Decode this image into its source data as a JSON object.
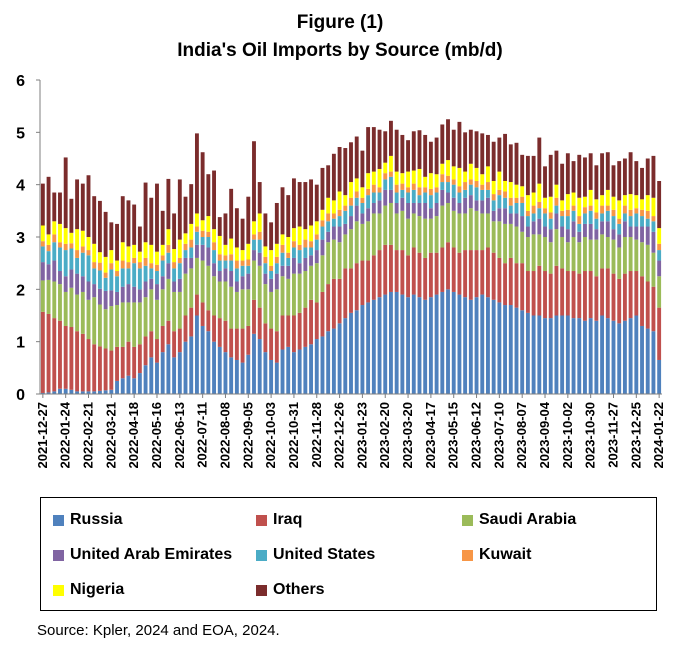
{
  "chart_data": {
    "type": "bar",
    "stacked": true,
    "title": "Figure (1)",
    "subtitle": "India's Oil Imports by Source (mb/d)",
    "xlabel": "",
    "ylabel": "",
    "ylim": [
      0,
      6
    ],
    "yticks": [
      0,
      1,
      2,
      3,
      4,
      5,
      6
    ],
    "grid": false,
    "legend_position": "bottom",
    "tick_labels": [
      "2021-12-27",
      "2022-01-24",
      "2022-02-21",
      "2022-03-21",
      "2022-04-18",
      "2022-05-16",
      "2022-06-13",
      "2022-07-11",
      "2022-08-08",
      "2022-09-05",
      "2022-10-03",
      "2022-10-31",
      "2022-11-28",
      "2022-12-26",
      "2023-01-23",
      "2023-02-20",
      "2023-03-20",
      "2023-04-17",
      "2023-05-15",
      "2023-06-12",
      "2023-07-10",
      "2023-08-07",
      "2023-09-04",
      "2023-10-02",
      "2023-10-30",
      "2023-11-27",
      "2023-12-25",
      "2024-01-22"
    ],
    "week_count": 109,
    "series": [
      {
        "name": "Russia",
        "color": "#4f81bd",
        "values": [
          0.02,
          0.03,
          0.05,
          0.1,
          0.1,
          0.08,
          0.05,
          0.05,
          0.05,
          0.05,
          0.06,
          0.07,
          0.08,
          0.25,
          0.3,
          0.35,
          0.3,
          0.4,
          0.55,
          0.7,
          0.6,
          0.8,
          0.95,
          0.7,
          0.8,
          1.0,
          1.1,
          1.5,
          1.3,
          1.2,
          1.0,
          0.9,
          0.8,
          0.7,
          0.65,
          0.6,
          0.75,
          1.15,
          1.05,
          0.8,
          0.65,
          0.6,
          0.85,
          0.9,
          0.8,
          0.85,
          0.9,
          0.95,
          1.05,
          1.1,
          1.2,
          1.25,
          1.35,
          1.45,
          1.55,
          1.6,
          1.7,
          1.75,
          1.8,
          1.85,
          1.9,
          1.95,
          1.95,
          1.9,
          1.85,
          1.9,
          1.85,
          1.8,
          1.85,
          1.9,
          1.95,
          2.0,
          1.95,
          1.9,
          1.85,
          1.8,
          1.85,
          1.9,
          1.85,
          1.8,
          1.75,
          1.7,
          1.7,
          1.65,
          1.6,
          1.55,
          1.5,
          1.5,
          1.45,
          1.45,
          1.5,
          1.5,
          1.5,
          1.45,
          1.45,
          1.4,
          1.45,
          1.4,
          1.5,
          1.45,
          1.4,
          1.35,
          1.4,
          1.45,
          1.5,
          1.3,
          1.25,
          1.2,
          0.65
        ]
      },
      {
        "name": "Iraq",
        "color": "#c0504d",
        "values": [
          1.55,
          1.5,
          1.4,
          1.3,
          1.2,
          1.2,
          1.15,
          1.1,
          1.0,
          0.9,
          0.85,
          0.8,
          0.75,
          0.65,
          0.6,
          0.65,
          0.6,
          0.55,
          0.55,
          0.5,
          0.45,
          0.5,
          0.45,
          0.5,
          0.45,
          0.5,
          0.55,
          0.4,
          0.45,
          0.4,
          0.5,
          0.55,
          0.6,
          0.55,
          0.6,
          0.65,
          0.55,
          0.65,
          0.6,
          0.55,
          0.6,
          0.6,
          0.65,
          0.6,
          0.7,
          0.7,
          0.75,
          0.85,
          0.7,
          0.85,
          0.9,
          0.95,
          0.85,
          0.95,
          0.85,
          0.9,
          0.85,
          0.8,
          0.85,
          0.9,
          0.95,
          0.9,
          0.8,
          0.85,
          0.8,
          0.9,
          0.85,
          0.8,
          0.85,
          0.8,
          0.85,
          0.9,
          0.85,
          0.8,
          0.9,
          0.95,
          0.9,
          0.85,
          0.95,
          0.9,
          0.85,
          0.8,
          0.9,
          0.85,
          0.9,
          0.8,
          0.85,
          0.95,
          0.9,
          0.85,
          0.95,
          0.9,
          0.85,
          0.9,
          0.85,
          0.95,
          0.9,
          0.85,
          0.9,
          0.95,
          0.9,
          0.85,
          0.9,
          0.9,
          0.85,
          0.95,
          0.9,
          0.85,
          1.0
        ]
      },
      {
        "name": "Saudi Arabia",
        "color": "#9bbb59",
        "values": [
          0.6,
          0.65,
          0.7,
          0.7,
          0.65,
          0.75,
          0.7,
          0.8,
          0.75,
          0.9,
          0.8,
          0.75,
          0.85,
          0.8,
          0.85,
          0.75,
          0.85,
          0.8,
          0.75,
          0.8,
          0.75,
          0.7,
          0.8,
          0.75,
          0.7,
          0.8,
          0.75,
          0.7,
          0.8,
          0.85,
          0.75,
          0.7,
          0.75,
          0.8,
          0.7,
          0.75,
          0.7,
          0.75,
          0.8,
          0.75,
          0.7,
          0.8,
          0.75,
          0.7,
          0.8,
          0.75,
          0.7,
          0.65,
          0.75,
          0.7,
          0.8,
          0.75,
          0.7,
          0.65,
          0.75,
          0.8,
          0.7,
          0.75,
          0.8,
          0.7,
          0.75,
          0.8,
          0.7,
          0.75,
          0.7,
          0.65,
          0.7,
          0.75,
          0.65,
          0.7,
          0.8,
          0.75,
          0.7,
          0.75,
          0.7,
          0.8,
          0.75,
          0.7,
          0.65,
          0.6,
          0.7,
          0.75,
          0.65,
          0.7,
          0.6,
          0.65,
          0.7,
          0.6,
          0.65,
          0.6,
          0.7,
          0.6,
          0.55,
          0.65,
          0.6,
          0.65,
          0.6,
          0.7,
          0.65,
          0.6,
          0.65,
          0.6,
          0.7,
          0.65,
          0.6,
          0.65,
          0.7,
          0.65,
          0.6
        ]
      },
      {
        "name": "United Arab Emirates",
        "color": "#8064a2",
        "values": [
          0.35,
          0.3,
          0.4,
          0.25,
          0.3,
          0.35,
          0.4,
          0.3,
          0.35,
          0.25,
          0.3,
          0.35,
          0.3,
          0.25,
          0.3,
          0.35,
          0.3,
          0.25,
          0.3,
          0.2,
          0.3,
          0.25,
          0.3,
          0.2,
          0.25,
          0.3,
          0.2,
          0.25,
          0.3,
          0.35,
          0.25,
          0.2,
          0.25,
          0.3,
          0.2,
          0.25,
          0.3,
          0.2,
          0.25,
          0.2,
          0.25,
          0.3,
          0.2,
          0.25,
          0.3,
          0.2,
          0.25,
          0.2,
          0.25,
          0.3,
          0.2,
          0.25,
          0.3,
          0.2,
          0.25,
          0.3,
          0.2,
          0.25,
          0.2,
          0.25,
          0.3,
          0.25,
          0.2,
          0.25,
          0.3,
          0.2,
          0.25,
          0.3,
          0.2,
          0.25,
          0.3,
          0.2,
          0.25,
          0.2,
          0.3,
          0.25,
          0.2,
          0.25,
          0.3,
          0.2,
          0.25,
          0.3,
          0.2,
          0.25,
          0.3,
          0.2,
          0.25,
          0.3,
          0.2,
          0.25,
          0.3,
          0.2,
          0.25,
          0.3,
          0.2,
          0.25,
          0.3,
          0.2,
          0.25,
          0.3,
          0.2,
          0.25,
          0.3,
          0.2,
          0.25,
          0.3,
          0.35,
          0.4,
          0.3
        ]
      },
      {
        "name": "United States",
        "color": "#4bacc6",
        "values": [
          0.3,
          0.25,
          0.35,
          0.45,
          0.5,
          0.4,
          0.3,
          0.45,
          0.5,
          0.3,
          0.35,
          0.25,
          0.4,
          0.3,
          0.35,
          0.3,
          0.45,
          0.4,
          0.3,
          0.2,
          0.25,
          0.3,
          0.2,
          0.25,
          0.3,
          0.15,
          0.2,
          0.25,
          0.15,
          0.2,
          0.25,
          0.2,
          0.15,
          0.2,
          0.25,
          0.2,
          0.15,
          0.2,
          0.25,
          0.2,
          0.15,
          0.2,
          0.25,
          0.15,
          0.2,
          0.25,
          0.2,
          0.15,
          0.2,
          0.25,
          0.2,
          0.15,
          0.2,
          0.25,
          0.2,
          0.15,
          0.2,
          0.25,
          0.2,
          0.15,
          0.2,
          0.25,
          0.2,
          0.15,
          0.2,
          0.25,
          0.15,
          0.2,
          0.25,
          0.2,
          0.15,
          0.2,
          0.25,
          0.2,
          0.15,
          0.2,
          0.25,
          0.2,
          0.15,
          0.2,
          0.25,
          0.2,
          0.15,
          0.2,
          0.25,
          0.2,
          0.15,
          0.2,
          0.25,
          0.2,
          0.15,
          0.2,
          0.25,
          0.2,
          0.15,
          0.2,
          0.25,
          0.2,
          0.15,
          0.2,
          0.25,
          0.2,
          0.15,
          0.2,
          0.25,
          0.2,
          0.15,
          0.2,
          0.2
        ]
      },
      {
        "name": "Kuwait",
        "color": "#f79646",
        "values": [
          0.1,
          0.12,
          0.15,
          0.1,
          0.12,
          0.1,
          0.15,
          0.12,
          0.1,
          0.12,
          0.15,
          0.1,
          0.12,
          0.1,
          0.15,
          0.12,
          0.1,
          0.12,
          0.15,
          0.1,
          0.12,
          0.1,
          0.15,
          0.12,
          0.1,
          0.12,
          0.15,
          0.1,
          0.12,
          0.1,
          0.15,
          0.12,
          0.1,
          0.12,
          0.15,
          0.1,
          0.12,
          0.1,
          0.15,
          0.12,
          0.1,
          0.12,
          0.15,
          0.1,
          0.12,
          0.1,
          0.15,
          0.12,
          0.1,
          0.12,
          0.15,
          0.1,
          0.12,
          0.1,
          0.15,
          0.12,
          0.1,
          0.12,
          0.15,
          0.1,
          0.12,
          0.1,
          0.15,
          0.12,
          0.1,
          0.12,
          0.15,
          0.1,
          0.12,
          0.1,
          0.15,
          0.12,
          0.1,
          0.12,
          0.15,
          0.1,
          0.12,
          0.1,
          0.15,
          0.12,
          0.1,
          0.12,
          0.15,
          0.1,
          0.12,
          0.1,
          0.15,
          0.12,
          0.1,
          0.12,
          0.15,
          0.1,
          0.12,
          0.1,
          0.15,
          0.12,
          0.1,
          0.12,
          0.15,
          0.1,
          0.12,
          0.1,
          0.15,
          0.12,
          0.1,
          0.12,
          0.15,
          0.1,
          0.12
        ]
      },
      {
        "name": "Nigeria",
        "color": "#ffff00",
        "values": [
          0.3,
          0.2,
          0.25,
          0.35,
          0.3,
          0.2,
          0.4,
          0.3,
          0.25,
          0.35,
          0.2,
          0.3,
          0.25,
          0.2,
          0.35,
          0.3,
          0.25,
          0.2,
          0.3,
          0.35,
          0.25,
          0.2,
          0.3,
          0.25,
          0.35,
          0.2,
          0.3,
          0.25,
          0.2,
          0.3,
          0.25,
          0.35,
          0.2,
          0.3,
          0.25,
          0.2,
          0.3,
          0.25,
          0.35,
          0.2,
          0.3,
          0.25,
          0.2,
          0.3,
          0.25,
          0.35,
          0.2,
          0.3,
          0.25,
          0.2,
          0.3,
          0.25,
          0.35,
          0.2,
          0.3,
          0.25,
          0.2,
          0.3,
          0.25,
          0.35,
          0.2,
          0.3,
          0.25,
          0.2,
          0.3,
          0.25,
          0.35,
          0.2,
          0.3,
          0.25,
          0.2,
          0.3,
          0.25,
          0.35,
          0.2,
          0.3,
          0.25,
          0.2,
          0.3,
          0.25,
          0.35,
          0.2,
          0.3,
          0.25,
          0.2,
          0.3,
          0.25,
          0.35,
          0.2,
          0.3,
          0.25,
          0.2,
          0.3,
          0.25,
          0.35,
          0.2,
          0.3,
          0.25,
          0.2,
          0.3,
          0.25,
          0.35,
          0.2,
          0.3,
          0.25,
          0.2,
          0.3,
          0.35,
          0.3
        ]
      },
      {
        "name": "Others",
        "color": "#7b2c2c",
        "values": [
          0.8,
          1.1,
          0.55,
          0.6,
          1.35,
          0.65,
          0.95,
          0.9,
          1.18,
          0.91,
          0.98,
          0.86,
          0.53,
          0.7,
          0.88,
          0.88,
          0.77,
          0.48,
          1.14,
          0.9,
          1.3,
          0.65,
          0.96,
          0.68,
          1.15,
          0.7,
          0.76,
          1.53,
          1.3,
          0.8,
          1.12,
          0.36,
          0.6,
          0.95,
          0.75,
          0.6,
          0.9,
          1.53,
          0.6,
          0.63,
          0.53,
          0.78,
          0.9,
          0.8,
          0.95,
          0.85,
          0.9,
          0.88,
          0.7,
          0.8,
          0.62,
          0.89,
          0.85,
          0.9,
          0.76,
          0.8,
          0.7,
          0.88,
          0.85,
          0.75,
          0.6,
          0.67,
          0.8,
          0.73,
          0.6,
          0.75,
          0.74,
          0.8,
          0.6,
          0.7,
          0.75,
          0.78,
          0.7,
          0.88,
          0.75,
          0.65,
          0.7,
          0.78,
          0.6,
          0.75,
          0.65,
          0.9,
          0.72,
          0.8,
          0.6,
          0.75,
          0.7,
          0.88,
          0.6,
          0.8,
          0.65,
          0.7,
          0.78,
          0.6,
          0.82,
          0.75,
          0.7,
          0.65,
          0.8,
          0.72,
          0.6,
          0.75,
          0.7,
          0.8,
          0.65,
          0.6,
          0.7,
          0.8,
          0.9
        ]
      }
    ]
  },
  "legend": [
    {
      "label": "Russia",
      "color": "#4f81bd"
    },
    {
      "label": "Iraq",
      "color": "#c0504d"
    },
    {
      "label": "Saudi Arabia",
      "color": "#9bbb59"
    },
    {
      "label": "United Arab Emirates",
      "color": "#8064a2"
    },
    {
      "label": "United States",
      "color": "#4bacc6"
    },
    {
      "label": "Kuwait",
      "color": "#f79646"
    },
    {
      "label": "Nigeria",
      "color": "#ffff00"
    },
    {
      "label": "Others",
      "color": "#7b2c2c"
    }
  ],
  "source": "Source: Kpler, 2024 and EOA, 2024."
}
